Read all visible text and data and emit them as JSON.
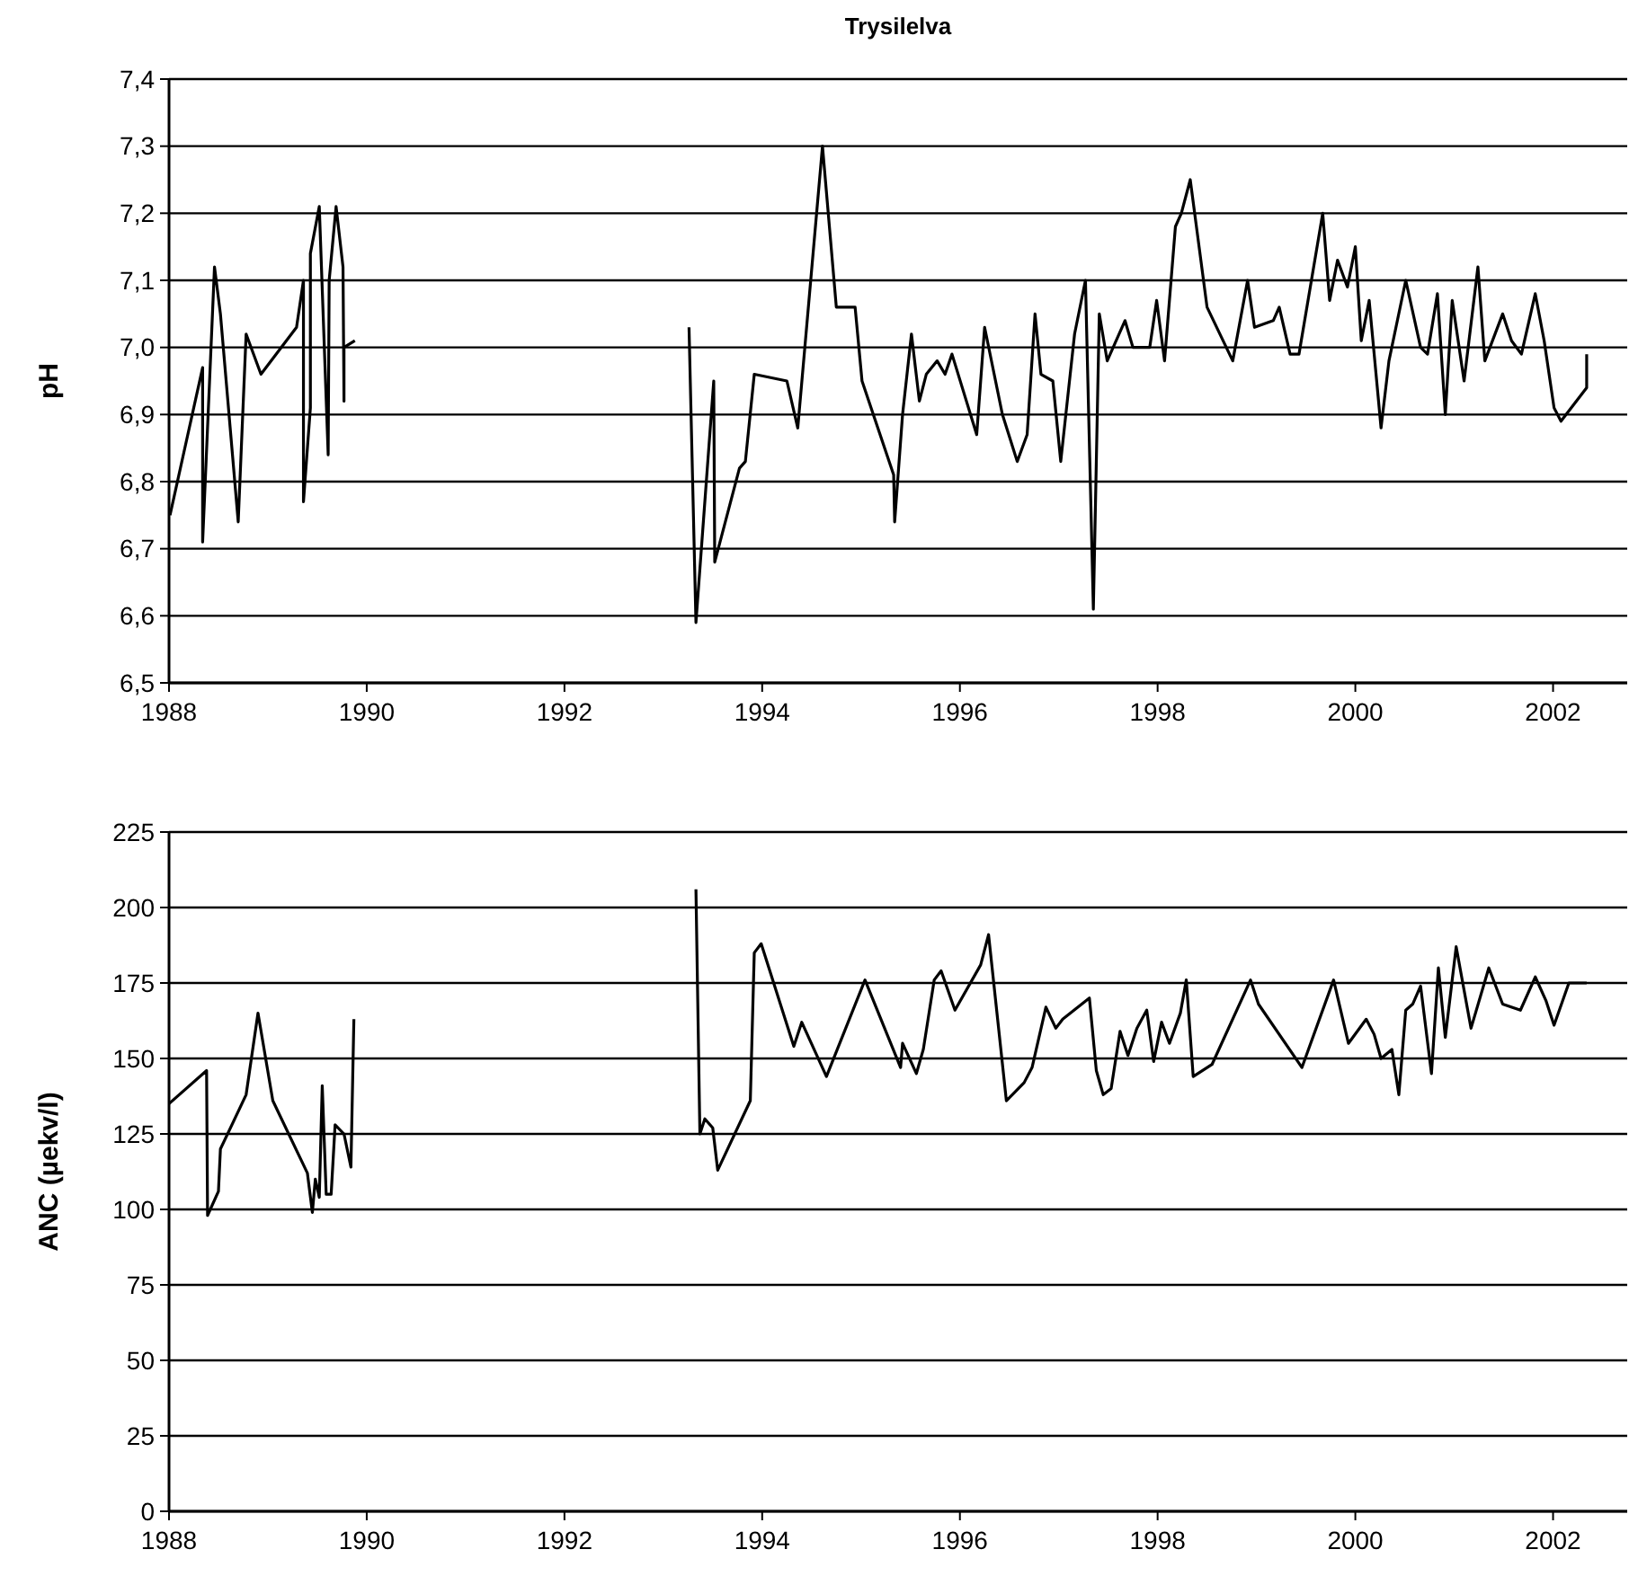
{
  "chart_data": [
    {
      "type": "line",
      "title": "Trysilelva",
      "ylabel": "pH",
      "xlim": [
        1988,
        2002.75
      ],
      "xticks": [
        1988,
        1990,
        1992,
        1994,
        1996,
        1998,
        2000,
        2002
      ],
      "ylim": [
        6.5,
        7.4
      ],
      "yticks": [
        {
          "value": 6.5,
          "label": "6,5"
        },
        {
          "value": 6.6,
          "label": "6,6"
        },
        {
          "value": 6.7,
          "label": "6,7"
        },
        {
          "value": 6.8,
          "label": "6,8"
        },
        {
          "value": 6.9,
          "label": "6,9"
        },
        {
          "value": 7.0,
          "label": "7,0"
        },
        {
          "value": 7.1,
          "label": "7,1"
        },
        {
          "value": 7.2,
          "label": "7,2"
        },
        {
          "value": 7.3,
          "label": "7,3"
        },
        {
          "value": 7.4,
          "label": "7,4"
        }
      ],
      "grid": "y",
      "line_style": "solid",
      "series": [
        {
          "color": "#000000",
          "x": [
            1988.01,
            1988.34,
            1988.34,
            1988.46,
            1988.52,
            1988.7,
            1988.78,
            1988.93,
            1989.29,
            1989.36,
            1989.36,
            1989.43,
            1989.43,
            1989.52,
            1989.61,
            1989.62,
            1989.69,
            1989.76,
            1989.77,
            1989.77,
            1989.88,
            1991.5,
            1993.26,
            1993.33,
            1993.51,
            1993.52,
            1993.77,
            1993.83,
            1993.92,
            1994.25,
            1994.36,
            1994.61,
            1994.75,
            1994.94,
            1995.01,
            1995.33,
            1995.34,
            1995.42,
            1995.51,
            1995.59,
            1995.66,
            1995.77,
            1995.85,
            1995.92,
            1996.17,
            1996.25,
            1996.43,
            1996.58,
            1996.68,
            1996.76,
            1996.82,
            1996.94,
            1997.02,
            1997.16,
            1997.27,
            1997.35,
            1997.41,
            1997.49,
            1997.67,
            1997.75,
            1997.92,
            1997.99,
            1998.07,
            1998.18,
            1998.24,
            1998.33,
            1998.5,
            1998.76,
            1998.91,
            1998.98,
            1999.17,
            1999.23,
            1999.34,
            1999.43,
            1999.67,
            1999.74,
            1999.82,
            1999.92,
            2000.0,
            2000.06,
            2000.14,
            2000.26,
            2000.34,
            2000.51,
            2000.66,
            2000.73,
            2000.83,
            2000.91,
            2000.98,
            2001.1,
            2001.24,
            2001.31,
            2001.49,
            2001.58,
            2001.68,
            2001.82,
            2001.91,
            2002.01,
            2002.08,
            2002.34,
            2002.34
          ],
          "values": [
            6.75,
            6.97,
            6.71,
            7.12,
            7.05,
            6.74,
            7.02,
            6.96,
            7.03,
            7.1,
            6.77,
            6.91,
            7.14,
            7.21,
            6.84,
            7.1,
            7.21,
            7.12,
            6.92,
            7.0,
            7.01,
            null,
            7.03,
            6.59,
            6.95,
            6.68,
            6.82,
            6.83,
            6.96,
            6.95,
            6.88,
            7.3,
            7.06,
            7.06,
            6.95,
            6.81,
            6.74,
            6.9,
            7.02,
            6.92,
            6.96,
            6.98,
            6.96,
            6.99,
            6.87,
            7.03,
            6.9,
            6.83,
            6.87,
            7.05,
            6.96,
            6.95,
            6.83,
            7.02,
            7.1,
            6.61,
            7.05,
            6.98,
            7.04,
            7.0,
            7.0,
            7.07,
            6.98,
            7.18,
            7.2,
            7.25,
            7.06,
            6.98,
            7.1,
            7.03,
            7.04,
            7.06,
            6.99,
            6.99,
            7.2,
            7.07,
            7.13,
            7.09,
            7.15,
            7.01,
            7.07,
            6.88,
            6.98,
            7.1,
            7.0,
            6.99,
            7.08,
            6.9,
            7.07,
            6.95,
            7.12,
            6.98,
            7.05,
            7.01,
            6.99,
            7.08,
            7.01,
            6.91,
            6.89,
            6.94,
            6.99
          ]
        }
      ]
    },
    {
      "type": "line",
      "ylabel": "ANC (µekv/l)",
      "xlim": [
        1988,
        2002.75
      ],
      "xticks": [
        1988,
        1990,
        1992,
        1994,
        1996,
        1998,
        2000,
        2002
      ],
      "ylim": [
        0,
        225
      ],
      "yticks": [
        0,
        25,
        50,
        75,
        100,
        125,
        150,
        175,
        200,
        225
      ],
      "grid": "y",
      "line_style": "solid",
      "series": [
        {
          "color": "#000000",
          "x": [
            1988.0,
            1988.38,
            1988.39,
            1988.5,
            1988.52,
            1988.78,
            1988.9,
            1989.05,
            1989.4,
            1989.45,
            1989.48,
            1989.52,
            1989.55,
            1989.59,
            1989.64,
            1989.68,
            1989.77,
            1989.84,
            1989.87,
            1991.5,
            1993.33,
            1993.37,
            1993.42,
            1993.5,
            1993.55,
            1993.88,
            1993.92,
            1993.99,
            1994.32,
            1994.4,
            1994.65,
            1995.04,
            1995.4,
            1995.42,
            1995.56,
            1995.63,
            1995.74,
            1995.81,
            1995.95,
            1996.21,
            1996.29,
            1996.47,
            1996.65,
            1996.73,
            1996.87,
            1996.97,
            1997.04,
            1997.31,
            1997.38,
            1997.45,
            1997.53,
            1997.62,
            1997.7,
            1997.79,
            1997.89,
            1997.96,
            1998.04,
            1998.12,
            1998.23,
            1998.29,
            1998.36,
            1998.55,
            1998.94,
            1999.02,
            1999.46,
            1999.78,
            1999.93,
            2000.11,
            2000.19,
            2000.26,
            2000.37,
            2000.44,
            2000.51,
            2000.58,
            2000.66,
            2000.77,
            2000.84,
            2000.91,
            2001.02,
            2001.17,
            2001.35,
            2001.49,
            2001.67,
            2001.82,
            2001.93,
            2002.01,
            2002.16,
            2002.34
          ],
          "values": [
            135,
            146,
            98,
            106,
            120,
            138,
            165,
            136,
            112,
            99,
            110,
            104,
            141,
            105,
            105,
            128,
            125,
            114,
            163,
            null,
            206,
            125,
            130,
            127,
            113,
            136,
            185,
            188,
            154,
            162,
            144,
            176,
            147,
            155,
            145,
            153,
            176,
            179,
            166,
            181,
            191,
            136,
            142,
            147,
            167,
            160,
            163,
            170,
            146,
            138,
            140,
            159,
            151,
            160,
            166,
            149,
            162,
            155,
            165,
            176,
            144,
            148,
            176,
            168,
            147,
            176,
            155,
            163,
            158,
            150,
            153,
            138,
            166,
            168,
            174,
            145,
            180,
            157,
            187,
            160,
            180,
            168,
            166,
            177,
            169,
            161,
            175,
            175
          ]
        }
      ]
    }
  ]
}
